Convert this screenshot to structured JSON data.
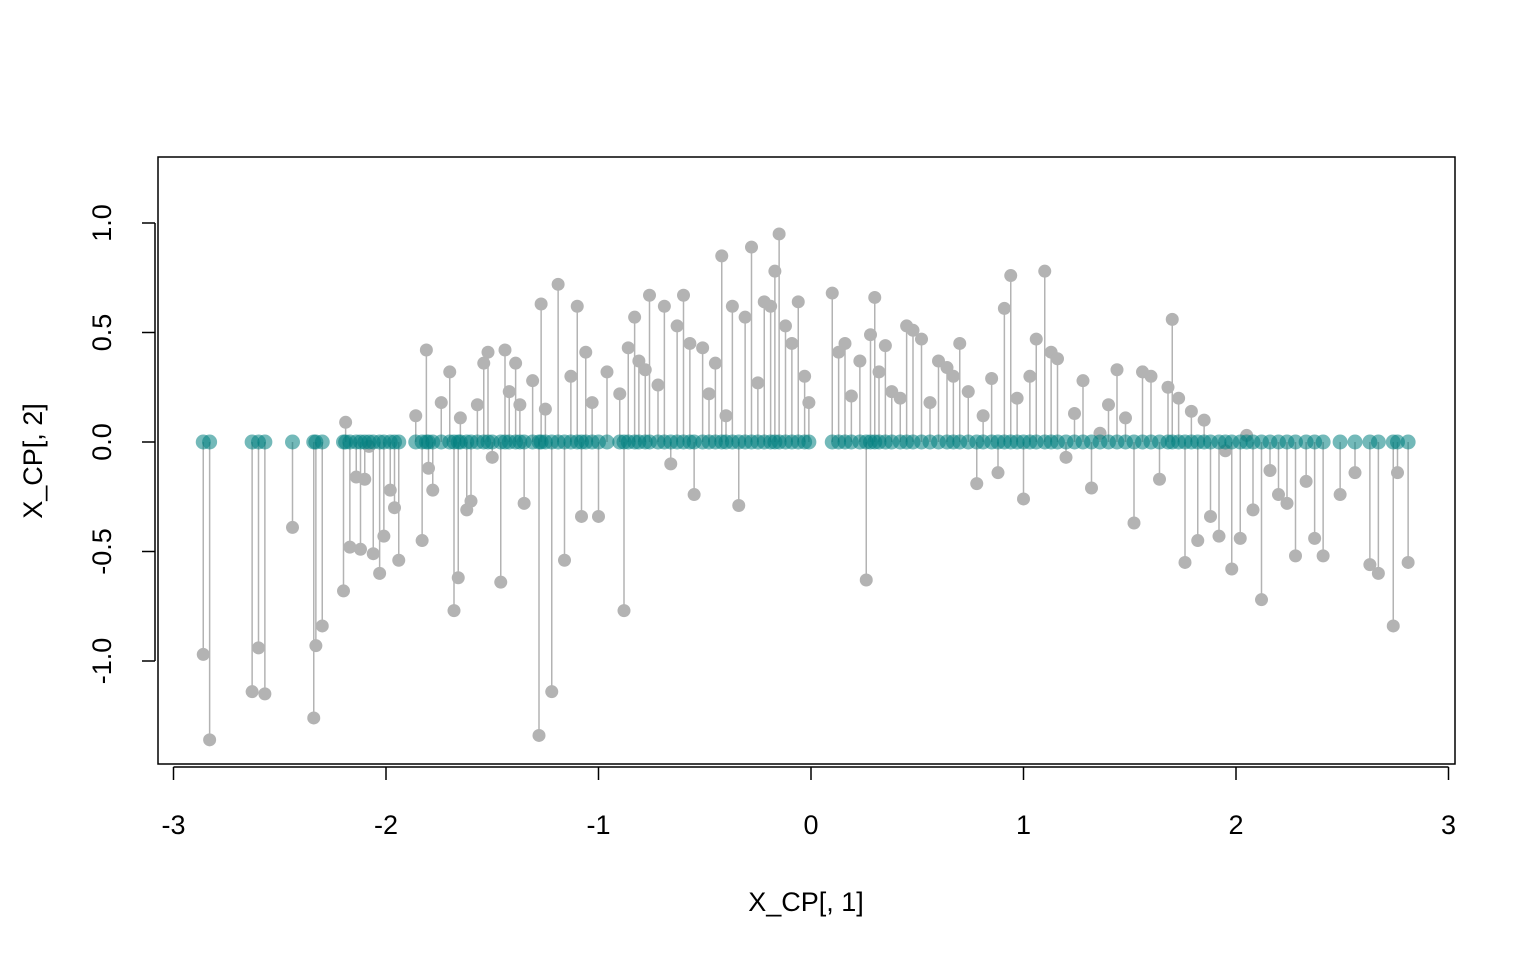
{
  "chart_data": {
    "type": "scatter",
    "title": "",
    "xlabel": "X_CP[, 1]",
    "ylabel": "X_CP[, 2]",
    "xlim": [
      -3.0,
      3.0
    ],
    "ylim": [
      -1.4,
      1.25
    ],
    "x_ticks": [
      -3,
      -2,
      -1,
      0,
      1,
      2,
      3
    ],
    "x_tick_labels": [
      "-3",
      "-2",
      "-1",
      "0",
      "1",
      "2",
      "3"
    ],
    "y_ticks": [
      -1.0,
      -0.5,
      0.0,
      0.5,
      1.0
    ],
    "y_tick_labels": [
      "-1.0",
      "-0.5",
      "0.0",
      "0.5",
      "1.0"
    ],
    "grid": false,
    "legend": "none",
    "colors": {
      "original_points": "#b3b3b3",
      "projected_points": "#008080",
      "projection_lines": "#b3b3b3",
      "frame": "#000000"
    },
    "series": [
      {
        "kind": "original points with vertical segments to their projection at y = 0",
        "x": [
          -2.86,
          -2.83,
          -2.63,
          -2.6,
          -2.57,
          -2.44,
          -2.34,
          -2.33,
          -2.3,
          -2.2,
          -2.19,
          -2.17,
          -2.14,
          -2.12,
          -2.1,
          -2.08,
          -2.06,
          -2.03,
          -2.01,
          -1.98,
          -1.96,
          -1.94,
          -1.86,
          -1.83,
          -1.81,
          -1.8,
          -1.78,
          -1.74,
          -1.7,
          -1.68,
          -1.66,
          -1.65,
          -1.62,
          -1.6,
          -1.57,
          -1.54,
          -1.52,
          -1.5,
          -1.46,
          -1.44,
          -1.42,
          -1.39,
          -1.37,
          -1.35,
          -1.31,
          -1.28,
          -1.27,
          -1.25,
          -1.22,
          -1.19,
          -1.16,
          -1.13,
          -1.1,
          -1.08,
          -1.06,
          -1.03,
          -1.0,
          -0.96,
          -0.9,
          -0.88,
          -0.86,
          -0.83,
          -0.81,
          -0.78,
          -0.76,
          -0.72,
          -0.69,
          -0.66,
          -0.63,
          -0.6,
          -0.57,
          -0.55,
          -0.51,
          -0.48,
          -0.45,
          -0.42,
          -0.4,
          -0.37,
          -0.34,
          -0.31,
          -0.28,
          -0.25,
          -0.22,
          -0.19,
          -0.17,
          -0.15,
          -0.12,
          -0.09,
          -0.06,
          -0.03,
          -0.01,
          0.1,
          0.13,
          0.16,
          0.19,
          0.23,
          0.26,
          0.28,
          0.3,
          0.32,
          0.35,
          0.38,
          0.42,
          0.45,
          0.48,
          0.52,
          0.56,
          0.6,
          0.64,
          0.67,
          0.7,
          0.74,
          0.78,
          0.81,
          0.85,
          0.88,
          0.91,
          0.94,
          0.97,
          1.0,
          1.03,
          1.06,
          1.1,
          1.13,
          1.16,
          1.2,
          1.24,
          1.28,
          1.32,
          1.36,
          1.4,
          1.44,
          1.48,
          1.52,
          1.56,
          1.6,
          1.64,
          1.68,
          1.7,
          1.73,
          1.76,
          1.79,
          1.82,
          1.85,
          1.88,
          1.92,
          1.95,
          1.98,
          2.02,
          2.05,
          2.08,
          2.12,
          2.16,
          2.2,
          2.24,
          2.28,
          2.33,
          2.37,
          2.41,
          2.49,
          2.56,
          2.63,
          2.67,
          2.74,
          2.76,
          2.81
        ],
        "y": [
          -0.97,
          -1.36,
          -1.14,
          -0.94,
          -1.15,
          -0.39,
          -1.26,
          -0.93,
          -0.84,
          -0.68,
          0.09,
          -0.48,
          -0.16,
          -0.49,
          -0.17,
          -0.02,
          -0.51,
          -0.6,
          -0.43,
          -0.22,
          -0.3,
          -0.54,
          0.12,
          -0.45,
          0.42,
          -0.12,
          -0.22,
          0.18,
          0.32,
          -0.77,
          -0.62,
          0.11,
          -0.31,
          -0.27,
          0.17,
          0.36,
          0.41,
          -0.07,
          -0.64,
          0.42,
          0.23,
          0.36,
          0.17,
          -0.28,
          0.28,
          -1.34,
          0.63,
          0.15,
          -1.14,
          0.72,
          -0.54,
          0.3,
          0.62,
          -0.34,
          0.41,
          0.18,
          -0.34,
          0.32,
          0.22,
          -0.77,
          0.43,
          0.57,
          0.37,
          0.33,
          0.67,
          0.26,
          0.62,
          -0.1,
          0.53,
          0.67,
          0.45,
          -0.24,
          0.43,
          0.22,
          0.36,
          0.85,
          0.12,
          0.62,
          -0.29,
          0.57,
          0.89,
          0.27,
          0.64,
          0.62,
          0.78,
          0.95,
          0.53,
          0.45,
          0.64,
          0.3,
          0.18,
          0.68,
          0.41,
          0.45,
          0.21,
          0.37,
          -0.63,
          0.49,
          0.66,
          0.32,
          0.44,
          0.23,
          0.2,
          0.53,
          0.51,
          0.47,
          0.18,
          0.37,
          0.34,
          0.3,
          0.45,
          0.23,
          -0.19,
          0.12,
          0.29,
          -0.14,
          0.61,
          0.76,
          0.2,
          -0.26,
          0.3,
          0.47,
          0.78,
          0.41,
          0.38,
          -0.07,
          0.13,
          0.28,
          -0.21,
          0.04,
          0.17,
          0.33,
          0.11,
          -0.37,
          0.32,
          0.3,
          -0.17,
          0.25,
          0.56,
          0.2,
          -0.55,
          0.14,
          -0.45,
          0.1,
          -0.34,
          -0.43,
          -0.04,
          -0.58,
          -0.44,
          0.03,
          -0.31,
          -0.72,
          -0.13,
          -0.24,
          -0.28,
          -0.52,
          -0.18,
          -0.44,
          -0.52,
          -0.24,
          -0.14,
          -0.56,
          -0.6,
          -0.84,
          -0.14,
          -0.55
        ]
      },
      {
        "kind": "projected points at y = 0",
        "x": [
          -2.86,
          -2.83,
          -2.63,
          -2.6,
          -2.57,
          -2.44,
          -2.34,
          -2.33,
          -2.3,
          -2.2,
          -2.19,
          -2.17,
          -2.14,
          -2.12,
          -2.1,
          -2.08,
          -2.06,
          -2.03,
          -2.01,
          -1.98,
          -1.96,
          -1.94,
          -1.86,
          -1.83,
          -1.81,
          -1.8,
          -1.78,
          -1.74,
          -1.7,
          -1.68,
          -1.66,
          -1.65,
          -1.62,
          -1.6,
          -1.57,
          -1.54,
          -1.52,
          -1.5,
          -1.46,
          -1.44,
          -1.42,
          -1.39,
          -1.37,
          -1.35,
          -1.31,
          -1.28,
          -1.27,
          -1.25,
          -1.22,
          -1.19,
          -1.16,
          -1.13,
          -1.1,
          -1.08,
          -1.06,
          -1.03,
          -1.0,
          -0.96,
          -0.9,
          -0.88,
          -0.86,
          -0.83,
          -0.81,
          -0.78,
          -0.76,
          -0.72,
          -0.69,
          -0.66,
          -0.63,
          -0.6,
          -0.57,
          -0.55,
          -0.51,
          -0.48,
          -0.45,
          -0.42,
          -0.4,
          -0.37,
          -0.34,
          -0.31,
          -0.28,
          -0.25,
          -0.22,
          -0.19,
          -0.17,
          -0.15,
          -0.12,
          -0.09,
          -0.06,
          -0.03,
          -0.01,
          0.1,
          0.13,
          0.16,
          0.19,
          0.23,
          0.26,
          0.28,
          0.3,
          0.32,
          0.35,
          0.38,
          0.42,
          0.45,
          0.48,
          0.52,
          0.56,
          0.6,
          0.64,
          0.67,
          0.7,
          0.74,
          0.78,
          0.81,
          0.85,
          0.88,
          0.91,
          0.94,
          0.97,
          1.0,
          1.03,
          1.06,
          1.1,
          1.13,
          1.16,
          1.2,
          1.24,
          1.28,
          1.32,
          1.36,
          1.4,
          1.44,
          1.48,
          1.52,
          1.56,
          1.6,
          1.64,
          1.68,
          1.7,
          1.73,
          1.76,
          1.79,
          1.82,
          1.85,
          1.88,
          1.92,
          1.95,
          1.98,
          2.02,
          2.05,
          2.08,
          2.12,
          2.16,
          2.2,
          2.24,
          2.28,
          2.33,
          2.37,
          2.41,
          2.49,
          2.56,
          2.63,
          2.67,
          2.74,
          2.76,
          2.81
        ],
        "y_constant": 0.0
      }
    ]
  }
}
